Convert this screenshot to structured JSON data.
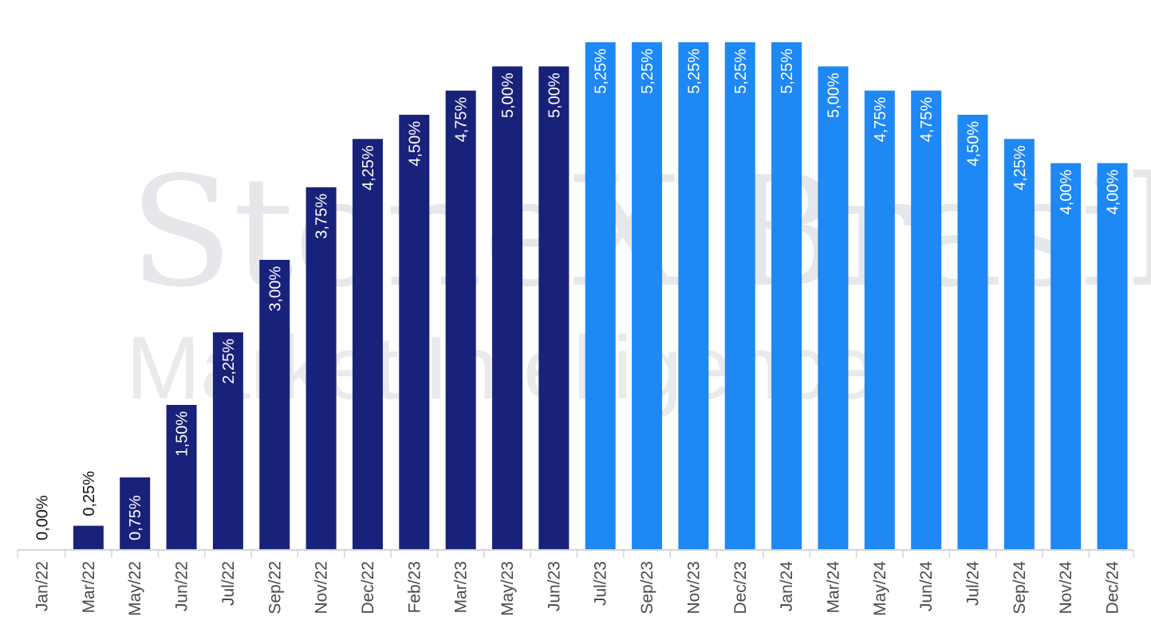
{
  "watermark": {
    "line1": "StoneX Brasil",
    "line2": "Market Intelligence"
  },
  "colors": {
    "dark": "#19227a",
    "light": "#1e88f4",
    "axis": "#d5d5d5",
    "tick_text": "#4a4a4a"
  },
  "chart_data": {
    "type": "bar",
    "title": "",
    "xlabel": "",
    "ylabel": "",
    "ylim": [
      0,
      5.5
    ],
    "grid": false,
    "categories": [
      "Jan/22",
      "Mar/22",
      "May/22",
      "Jun/22",
      "Jul/22",
      "Sep/22",
      "Nov/22",
      "Dec/22",
      "Feb/23",
      "Mar/23",
      "May/23",
      "Jun/23",
      "Jul/23",
      "Sep/23",
      "Nov/23",
      "Dec/23",
      "Jan/24",
      "Mar/24",
      "May/24",
      "Jun/24",
      "Jul/24",
      "Sep/24",
      "Nov/24",
      "Dec/24"
    ],
    "values": [
      0.0,
      0.25,
      0.75,
      1.5,
      2.25,
      3.0,
      3.75,
      4.25,
      4.5,
      4.75,
      5.0,
      5.0,
      5.25,
      5.25,
      5.25,
      5.25,
      5.25,
      5.0,
      4.75,
      4.75,
      4.5,
      4.25,
      4.0,
      4.0
    ],
    "labels": [
      "0,00%",
      "0,25%",
      "0,75%",
      "1,50%",
      "2,25%",
      "3,00%",
      "3,75%",
      "4,25%",
      "4,50%",
      "4,75%",
      "5,00%",
      "5,00%",
      "5,25%",
      "5,25%",
      "5,25%",
      "5,25%",
      "5,25%",
      "5,00%",
      "4,75%",
      "4,75%",
      "4,50%",
      "4,25%",
      "4,00%",
      "4,00%"
    ],
    "bar_colors": [
      "dark",
      "dark",
      "dark",
      "dark",
      "dark",
      "dark",
      "dark",
      "dark",
      "dark",
      "dark",
      "dark",
      "dark",
      "light",
      "light",
      "light",
      "light",
      "light",
      "light",
      "light",
      "light",
      "light",
      "light",
      "light",
      "light"
    ]
  }
}
